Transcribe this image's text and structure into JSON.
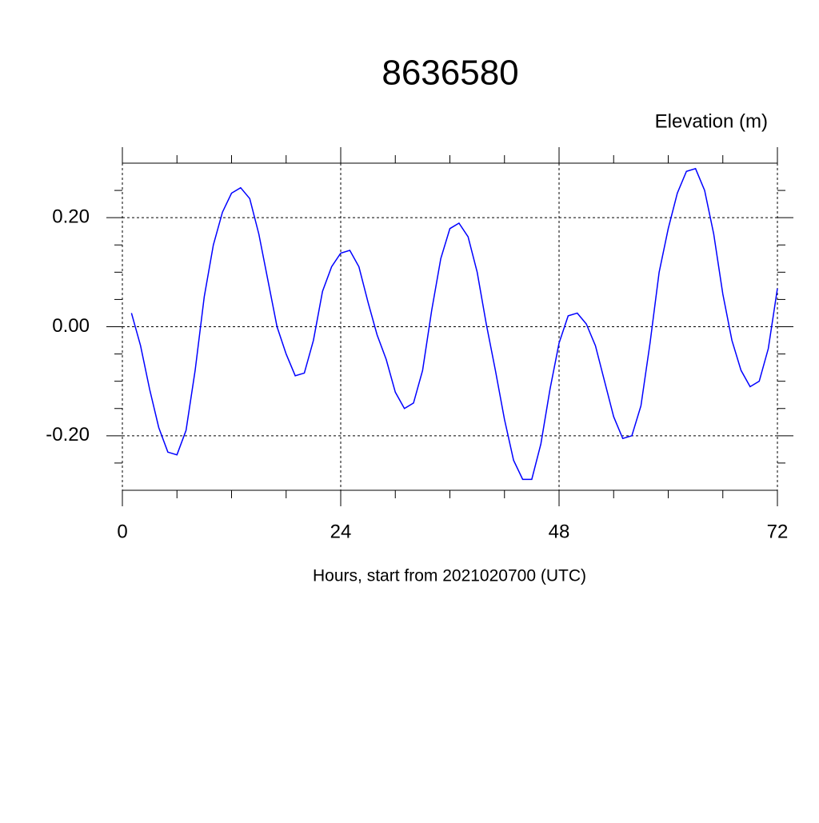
{
  "chart_data": {
    "type": "line",
    "title": "8636580",
    "ylabel": "Elevation (m)",
    "xlabel": "Hours, start from 2021020700 (UTC)",
    "x": [
      1,
      2,
      3,
      4,
      5,
      6,
      7,
      8,
      9,
      10,
      11,
      12,
      13,
      14,
      15,
      16,
      17,
      18,
      19,
      20,
      21,
      22,
      23,
      24,
      25,
      26,
      27,
      28,
      29,
      30,
      31,
      32,
      33,
      34,
      35,
      36,
      37,
      38,
      39,
      40,
      41,
      42,
      43,
      44,
      45,
      46,
      47,
      48,
      49,
      50,
      51,
      52,
      53,
      54,
      55,
      56,
      57,
      58,
      59,
      60,
      61,
      62,
      63,
      64,
      65,
      66,
      67,
      68,
      69,
      70,
      71,
      72
    ],
    "series": [
      {
        "color": "#0000ff",
        "values": [
          0.025,
          -0.035,
          -0.115,
          -0.185,
          -0.23,
          -0.235,
          -0.19,
          -0.08,
          0.055,
          0.15,
          0.21,
          0.245,
          0.255,
          0.235,
          0.17,
          0.085,
          0.0,
          -0.05,
          -0.09,
          -0.085,
          -0.025,
          0.065,
          0.11,
          0.135,
          0.14,
          0.11,
          0.045,
          -0.015,
          -0.06,
          -0.12,
          -0.15,
          -0.14,
          -0.08,
          0.03,
          0.125,
          0.18,
          0.19,
          0.165,
          0.1,
          0.005,
          -0.08,
          -0.17,
          -0.245,
          -0.28,
          -0.28,
          -0.215,
          -0.115,
          -0.03,
          0.02,
          0.025,
          0.005,
          -0.035,
          -0.1,
          -0.165,
          -0.205,
          -0.2,
          -0.145,
          -0.03,
          0.1,
          0.18,
          0.245,
          0.285,
          0.29,
          0.25,
          0.17,
          0.06,
          -0.025,
          -0.08,
          -0.11,
          -0.1,
          -0.04,
          0.07
        ]
      }
    ],
    "xlim": [
      0,
      72
    ],
    "xticks": [
      0,
      24,
      48,
      72
    ],
    "xminorticks": [
      6,
      12,
      18,
      30,
      36,
      42,
      54,
      60,
      66
    ],
    "ylim": [
      -0.3,
      0.3
    ],
    "yticks": [
      {
        "value": -0.2,
        "label": "-0.20"
      },
      {
        "value": 0,
        "label": "0.00"
      },
      {
        "value": 0.2,
        "label": "0.20"
      }
    ],
    "yminorticks": [
      -0.25,
      -0.15,
      -0.1,
      -0.05,
      0.05,
      0.1,
      0.15,
      0.25
    ],
    "grid": true
  }
}
